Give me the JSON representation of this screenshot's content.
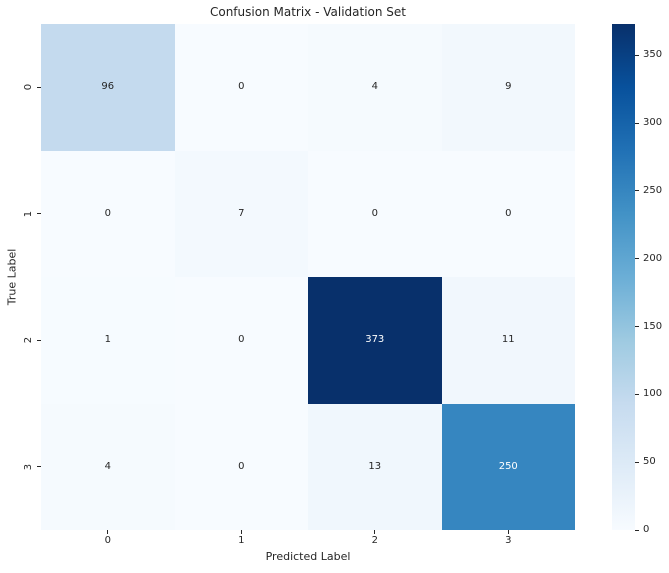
{
  "chart_data": {
    "type": "heatmap",
    "title": "Confusion Matrix - Validation Set",
    "xlabel": "Predicted Label",
    "ylabel": "True Label",
    "x_tick_labels": [
      "0",
      "1",
      "2",
      "3"
    ],
    "y_tick_labels": [
      "0",
      "1",
      "2",
      "3"
    ],
    "values": [
      [
        96,
        0,
        4,
        9
      ],
      [
        0,
        7,
        0,
        0
      ],
      [
        1,
        0,
        373,
        11
      ],
      [
        4,
        0,
        13,
        250
      ]
    ],
    "vmin": 0,
    "vmax": 373,
    "colormap": "Blues",
    "colormap_anchors": [
      "#f7fbff",
      "#deebf7",
      "#c6dbef",
      "#9ecae1",
      "#6baed6",
      "#4292c6",
      "#2171b5",
      "#08519c",
      "#08306b"
    ],
    "colorbar_ticks": [
      0,
      50,
      100,
      150,
      200,
      250,
      300,
      350
    ],
    "colorbar_position": "right",
    "annotation_colors": {
      "on_light": "#262626",
      "on_dark": "#ffffff"
    },
    "text_color": "#262626",
    "background": "#ffffff",
    "grid": false,
    "legend": "none"
  }
}
